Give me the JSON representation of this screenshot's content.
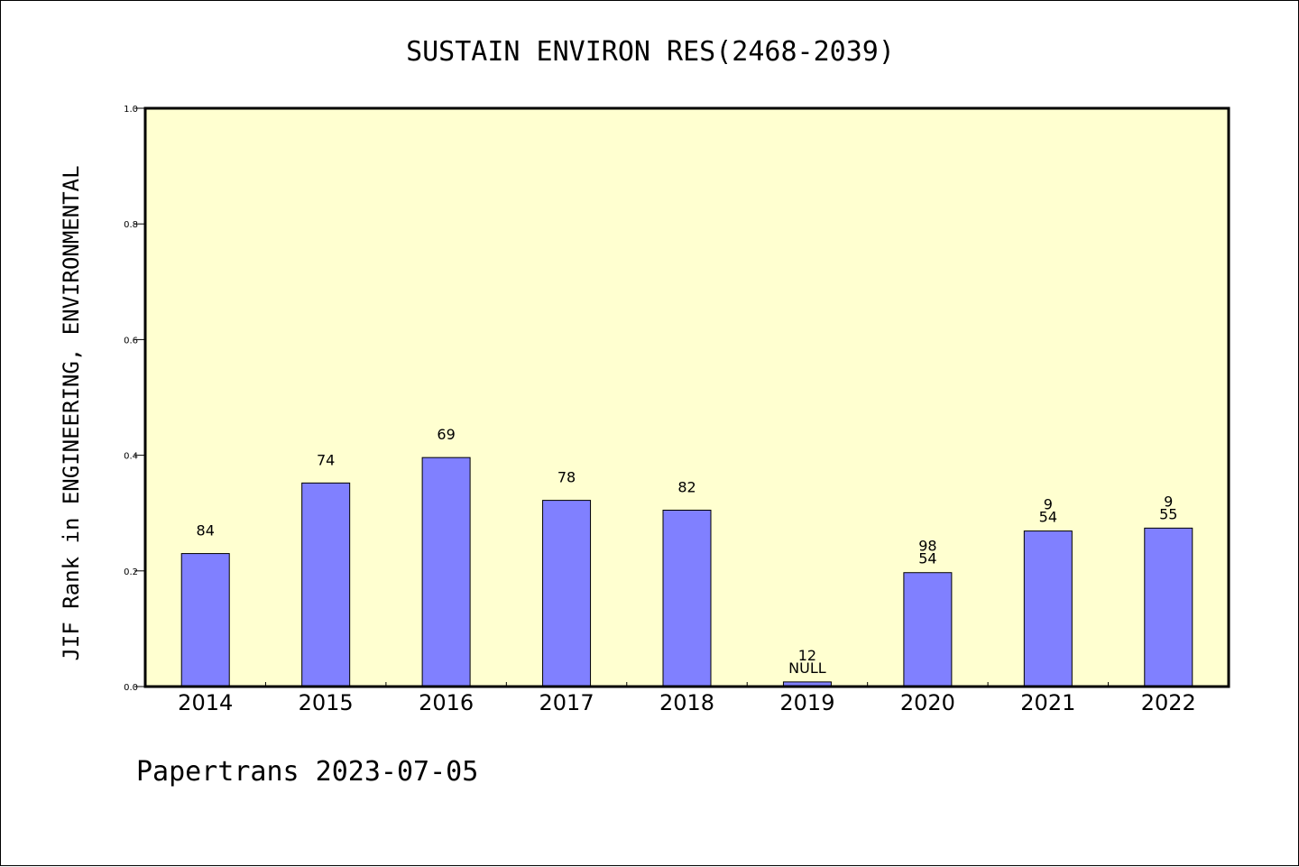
{
  "chart_data": {
    "type": "bar",
    "title": "SUSTAIN ENVIRON RES(2468-2039)",
    "xlabel": "",
    "ylabel": "JIF Rank in ENGINEERING, ENVIRONMENTAL",
    "ylim": [
      0,
      1.0
    ],
    "yticks": [
      "0.0",
      "0.2",
      "0.4",
      "0.6",
      "0.8",
      "1.0"
    ],
    "categories": [
      "2014",
      "2015",
      "2016",
      "2017",
      "2018",
      "2019",
      "2020",
      "2021",
      "2022"
    ],
    "values": [
      0.23,
      0.352,
      0.396,
      0.322,
      0.305,
      0.008,
      0.197,
      0.269,
      0.274
    ],
    "labels": [
      [
        "84"
      ],
      [
        "74"
      ],
      [
        "69"
      ],
      [
        "78"
      ],
      [
        "82"
      ],
      [
        "12",
        "NULL"
      ],
      [
        "98",
        "54"
      ],
      [
        "9",
        "54"
      ],
      [
        "9",
        "55"
      ]
    ],
    "bar_color": "#8080ff",
    "plot_background": "#ffffd0",
    "grid": false,
    "legend": "none"
  },
  "footer": "Papertrans 2023-07-05"
}
